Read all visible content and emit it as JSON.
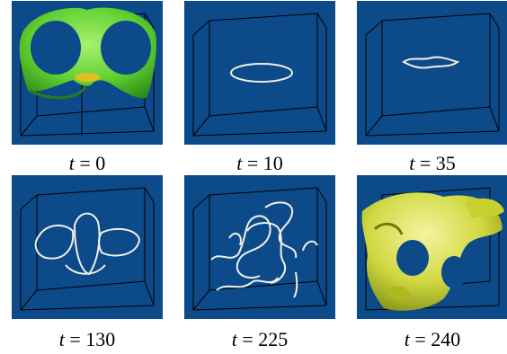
{
  "figure": {
    "panels": [
      {
        "id": "p1",
        "var": "t",
        "eq": "= 0",
        "content": "green-surface"
      },
      {
        "id": "p2",
        "var": "t",
        "eq": "= 10",
        "content": "ring"
      },
      {
        "id": "p3",
        "var": "t",
        "eq": "= 35",
        "content": "wavy-ring"
      },
      {
        "id": "p4",
        "var": "t",
        "eq": "= 130",
        "content": "loops"
      },
      {
        "id": "p5",
        "var": "t",
        "eq": "= 225",
        "content": "tangle"
      },
      {
        "id": "p6",
        "var": "t",
        "eq": "= 240",
        "content": "yellow-surface"
      }
    ],
    "colors": {
      "background": "#0c4a8a",
      "box_edges": "#000000",
      "filament": "#f0f0e8",
      "surface_green": "#6fe03a",
      "surface_yellow": "#d8e04a"
    }
  }
}
